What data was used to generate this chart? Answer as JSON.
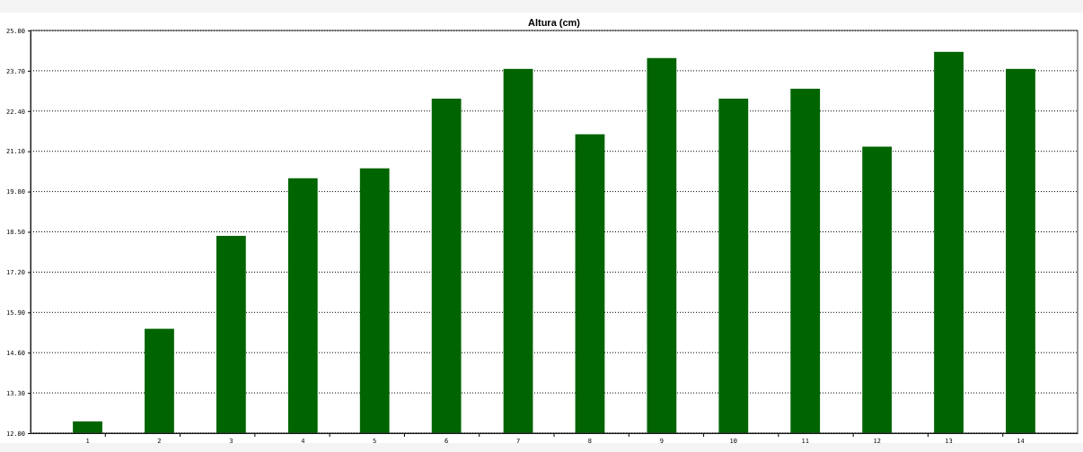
{
  "chart_data": {
    "type": "bar",
    "title": "Altura (cm)",
    "categories": [
      "1",
      "2",
      "3",
      "4",
      "5",
      "6",
      "7",
      "8",
      "9",
      "10",
      "11",
      "12",
      "13",
      "14"
    ],
    "values": [
      12.38,
      15.37,
      18.37,
      20.23,
      20.55,
      22.8,
      23.76,
      21.65,
      24.11,
      22.8,
      23.12,
      21.25,
      24.31,
      23.76
    ],
    "color": "#006400",
    "ylim": [
      12,
      25
    ],
    "yticks": [
      {
        "value": 12,
        "label": "12.00"
      },
      {
        "value": 13.3,
        "label": "13.30"
      },
      {
        "value": 14.6,
        "label": "14.60"
      },
      {
        "value": 15.9,
        "label": "15.90"
      },
      {
        "value": 17.2,
        "label": "17.20"
      },
      {
        "value": 18.5,
        "label": "18.50"
      },
      {
        "value": 19.8,
        "label": "19.80"
      },
      {
        "value": 21.1,
        "label": "21.10"
      },
      {
        "value": 22.4,
        "label": "22.40"
      },
      {
        "value": 23.7,
        "label": "23.70"
      },
      {
        "value": 25,
        "label": "25.00"
      }
    ],
    "grid": "y"
  }
}
